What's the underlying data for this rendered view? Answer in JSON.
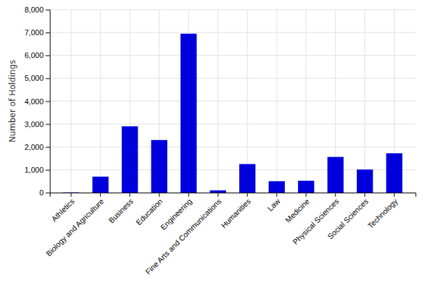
{
  "chart_data": {
    "type": "bar",
    "categories": [
      "Athletics",
      "Biology and Agriculture",
      "Business",
      "Education",
      "Engineering",
      "Fine Arts and Communications",
      "Humanities",
      "Law",
      "Medicine",
      "Physical Sciences",
      "Social Sciences",
      "Technology"
    ],
    "values": [
      10,
      700,
      2900,
      2300,
      6950,
      100,
      1250,
      500,
      520,
      1560,
      1010,
      1720
    ],
    "color": "#0000dd",
    "ylabel": "Number of Holdings",
    "ylim": [
      0,
      8000
    ],
    "yticks": [
      0,
      {
        "value": 1000,
        "label": "1,000"
      },
      {
        "value": 2000,
        "label": "2,000"
      },
      {
        "value": 3000,
        "label": "3,000"
      },
      {
        "value": 4000,
        "label": "4,000"
      },
      {
        "value": 5000,
        "label": "5,000"
      },
      {
        "value": 6000,
        "label": "6,000"
      },
      {
        "value": 7000,
        "label": "7,000"
      },
      {
        "value": 8000,
        "label": "8,000"
      }
    ],
    "grid": true
  }
}
